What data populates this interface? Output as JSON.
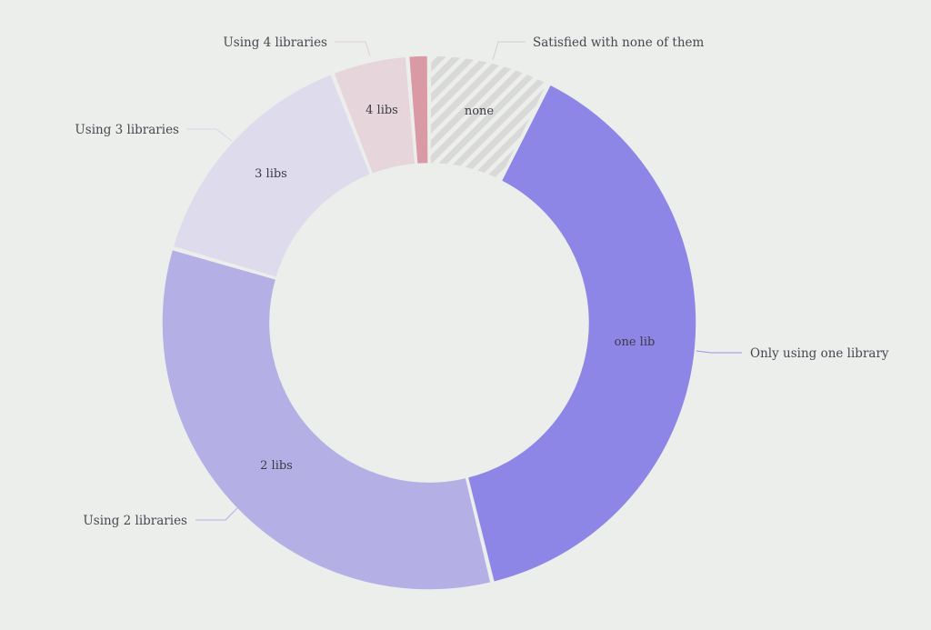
{
  "chart_data": {
    "type": "pie",
    "subtype": "donut",
    "title": "",
    "center": [
      472,
      355
    ],
    "outer_radius": 294,
    "inner_radius": 175,
    "slices": [
      {
        "key": "none",
        "inner_label": "none",
        "outer_label": "Satisfied with none of them",
        "value": 7.4,
        "color": "#dcdcdc",
        "pattern": "hatched"
      },
      {
        "key": "one",
        "inner_label": "one lib",
        "outer_label": "Only using one library",
        "value": 38.8,
        "color": "#8e86e6"
      },
      {
        "key": "two",
        "inner_label": "2 libs",
        "outer_label": "Using 2 libraries",
        "value": 33.3,
        "color": "#b4b0e6"
      },
      {
        "key": "three",
        "inner_label": "3 libs",
        "outer_label": "Using 3 libraries",
        "value": 14.6,
        "color": "#dedbed"
      },
      {
        "key": "four",
        "inner_label": "4 libs",
        "outer_label": "Using 4 libraries",
        "value": 4.6,
        "color": "#e6d5da"
      },
      {
        "key": "five_plus",
        "inner_label": "",
        "outer_label": "",
        "value": 1.3,
        "color": "#d99aa6"
      }
    ],
    "start_angle_deg": 0,
    "direction": "clockwise",
    "legend": "none (direct labels with leader lines)"
  },
  "labels": {
    "none_inner": "none",
    "one_inner": "one lib",
    "two_inner": "2 libs",
    "three_inner": "3 libs",
    "four_inner": "4 libs",
    "none_outer": "Satisfied with none of them",
    "one_outer": "Only using one library",
    "two_outer": "Using 2 libraries",
    "three_outer": "Using 3 libraries",
    "four_outer": "Using 4 libraries"
  },
  "colors": {
    "background": "#eceeeb",
    "one": "#8e86e6",
    "two": "#b4b0e6",
    "three": "#dedbed",
    "four": "#e6d5da",
    "five_plus": "#d99aa6",
    "none_base": "#eceeeb",
    "none_stripe": "#d8d8d6"
  }
}
